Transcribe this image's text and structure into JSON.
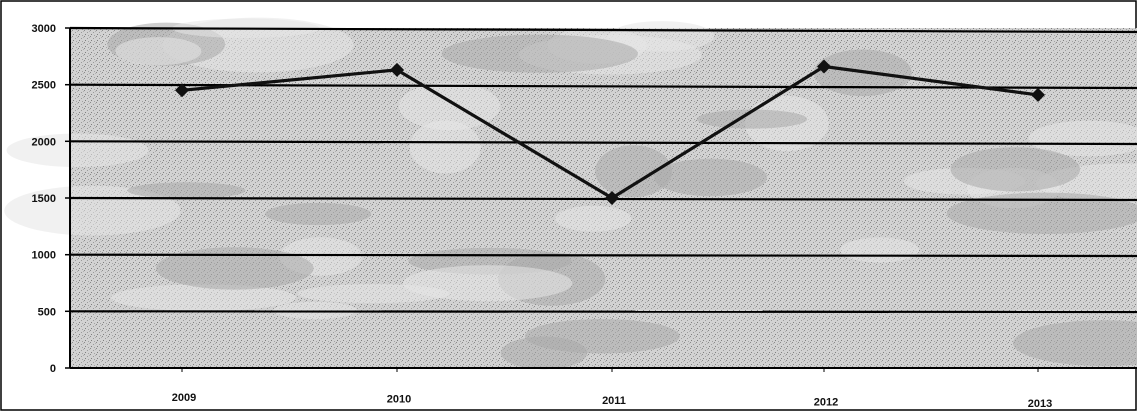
{
  "chart_data": {
    "type": "line",
    "categories": [
      "2009",
      "2010",
      "2011",
      "2012",
      "2013"
    ],
    "series": [
      {
        "values": [
          2450,
          2630,
          1500,
          2660,
          2410
        ]
      }
    ],
    "yticks": [
      "0",
      "500",
      "1000",
      "1500",
      "2000",
      "2500",
      "3000"
    ],
    "ylim": [
      0,
      3000
    ],
    "grid": true,
    "colors": {
      "line": "#111111",
      "grid": "#000000",
      "background": "#c9c9c9"
    }
  }
}
